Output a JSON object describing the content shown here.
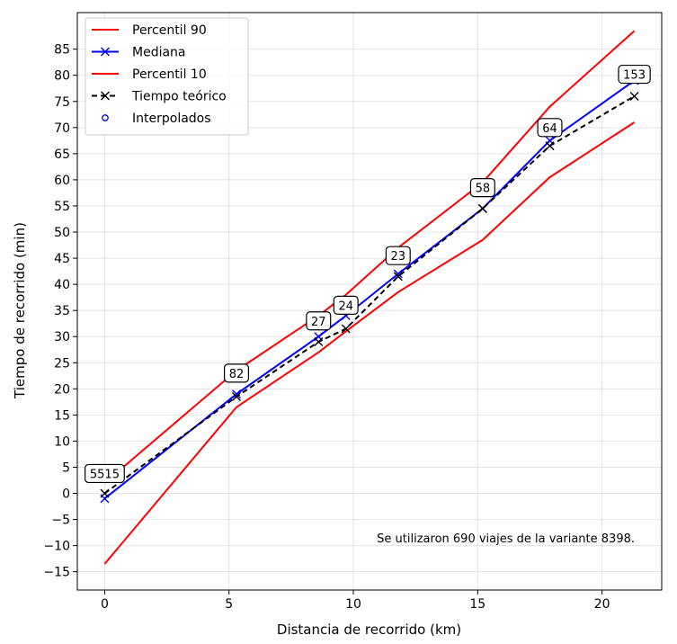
{
  "chart_data": {
    "type": "line",
    "title": "",
    "xlabel": "Distancia de recorrido (km)",
    "ylabel": "Tiempo de recorrido (min)",
    "xlim": [
      -1.1,
      22.4
    ],
    "ylim": [
      -18.5,
      92.0
    ],
    "xticks": [
      0,
      5,
      10,
      15,
      20
    ],
    "yticks": [
      -15,
      -10,
      -5,
      0,
      5,
      10,
      15,
      20,
      25,
      30,
      35,
      40,
      45,
      50,
      55,
      60,
      65,
      70,
      75,
      80,
      85
    ],
    "grid": true,
    "legend_position": "top-left",
    "colors": {
      "p90": "#ff0000",
      "median": "#0000ff",
      "p10": "#ff0000",
      "theoretical": "#000000",
      "interpolated": "#0000ff"
    },
    "series": [
      {
        "name": "Percentil 90",
        "style": "line",
        "x": [
          0,
          5.3,
          8.6,
          9.7,
          11.8,
          15.2,
          17.9,
          21.3
        ],
        "y": [
          2.0,
          23.5,
          34.0,
          38.0,
          47.0,
          59.5,
          74.0,
          88.5
        ]
      },
      {
        "name": "Mediana",
        "style": "line-x",
        "x": [
          0,
          5.3,
          8.6,
          9.7,
          11.8,
          15.2,
          17.9,
          21.3
        ],
        "y": [
          -1.0,
          19.0,
          30.0,
          34.0,
          42.0,
          54.5,
          67.5,
          79.0
        ]
      },
      {
        "name": "Percentil 10",
        "style": "line",
        "x": [
          0,
          5.3,
          8.6,
          9.7,
          11.8,
          15.2,
          17.9,
          21.3
        ],
        "y": [
          -13.5,
          16.5,
          27.0,
          31.0,
          38.5,
          48.5,
          60.5,
          71.0
        ]
      },
      {
        "name": "Tiempo teórico",
        "style": "dashed-x",
        "x": [
          0,
          5.3,
          8.6,
          9.7,
          11.8,
          15.2,
          17.9,
          21.3
        ],
        "y": [
          0.0,
          18.5,
          29.0,
          31.5,
          41.5,
          54.5,
          66.5,
          76.0
        ]
      },
      {
        "name": "Interpolados",
        "style": "circles",
        "x": [],
        "y": []
      }
    ],
    "point_labels": [
      {
        "x": 0,
        "y": 3.8,
        "text": "5515"
      },
      {
        "x": 5.3,
        "y": 23.0,
        "text": "82"
      },
      {
        "x": 8.6,
        "y": 33.0,
        "text": "27"
      },
      {
        "x": 9.7,
        "y": 36.0,
        "text": "24"
      },
      {
        "x": 11.8,
        "y": 45.5,
        "text": "23"
      },
      {
        "x": 15.2,
        "y": 58.5,
        "text": "58"
      },
      {
        "x": 17.9,
        "y": 70.0,
        "text": "64"
      },
      {
        "x": 21.3,
        "y": 80.2,
        "text": "153"
      }
    ],
    "annotation": "Se utilizaron 690 viajes de la variante 8398."
  }
}
